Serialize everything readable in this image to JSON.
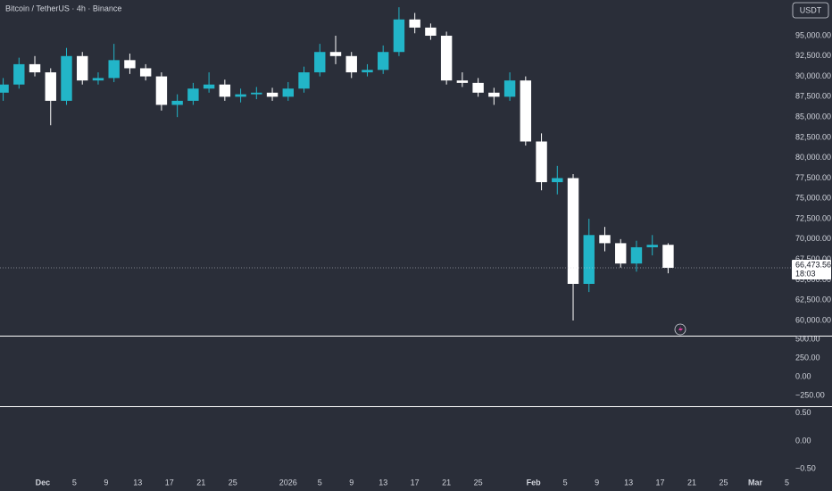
{
  "chart_data": {
    "type": "candlestick",
    "title": "Bitcoin / TetherUS · 4h · Binance",
    "currency": "USDT",
    "up_color": "#22b5c8",
    "down_color": "#ffffff",
    "x": [
      -5,
      -3,
      -1,
      1,
      3,
      5,
      7,
      9,
      11,
      13,
      15,
      17,
      19,
      21,
      23,
      25,
      27,
      29,
      31,
      33,
      35,
      37,
      39,
      41,
      43,
      45,
      47,
      49,
      51,
      53,
      55,
      57,
      59,
      61,
      63,
      65,
      67,
      69,
      71,
      73,
      75,
      77,
      79
    ],
    "open": [
      88000,
      89000,
      91500,
      90500,
      87000,
      92500,
      89500,
      89800,
      92000,
      91000,
      90000,
      86500,
      87000,
      88500,
      89000,
      87500,
      87800,
      88000,
      87500,
      88500,
      90500,
      93000,
      92500,
      90500,
      90800,
      93000,
      97000,
      96000,
      95000,
      89500,
      89200,
      88000,
      87500,
      89500,
      82000,
      77000,
      77500,
      64500,
      70500,
      69500,
      67000,
      69000,
      69300
    ],
    "high": [
      89800,
      92300,
      92500,
      91000,
      93500,
      93000,
      90500,
      94000,
      92800,
      91500,
      90500,
      87800,
      89200,
      90500,
      89600,
      88500,
      88700,
      88600,
      89300,
      91200,
      94000,
      95000,
      93000,
      91500,
      93800,
      98500,
      97800,
      96500,
      95500,
      90500,
      89800,
      88600,
      90500,
      90000,
      83000,
      79000,
      78000,
      72500,
      71500,
      70000,
      69800,
      70500,
      69500
    ],
    "low": [
      87000,
      88500,
      90000,
      84000,
      86500,
      89000,
      89000,
      89300,
      90300,
      89500,
      85800,
      85000,
      86500,
      88000,
      87000,
      86800,
      87200,
      87000,
      87000,
      88000,
      90000,
      91500,
      89800,
      90000,
      90300,
      92500,
      95300,
      94500,
      89000,
      88700,
      87500,
      86500,
      87000,
      81500,
      76000,
      75500,
      60000,
      63500,
      68500,
      66500,
      66000,
      68000,
      65800
    ],
    "close": [
      89000,
      91500,
      90500,
      87000,
      92500,
      89500,
      89800,
      92000,
      91000,
      90000,
      86500,
      87000,
      88500,
      89000,
      87500,
      87800,
      88000,
      87500,
      88500,
      90500,
      93000,
      92500,
      90500,
      90800,
      93000,
      97000,
      96000,
      95000,
      89500,
      89200,
      88000,
      87500,
      89500,
      82000,
      77000,
      77500,
      64500,
      70500,
      69500,
      67000,
      69000,
      69300,
      66473.56
    ],
    "xlim": [
      -5.4,
      99.7
    ],
    "xticks": [
      {
        "value": 0,
        "label": "Dec"
      },
      {
        "value": 4,
        "label": "5"
      },
      {
        "value": 8,
        "label": "9"
      },
      {
        "value": 12,
        "label": "13"
      },
      {
        "value": 16,
        "label": "17"
      },
      {
        "value": 20,
        "label": "21"
      },
      {
        "value": 24,
        "label": "25"
      },
      {
        "value": 31,
        "label": "2026"
      },
      {
        "value": 35,
        "label": "5"
      },
      {
        "value": 39,
        "label": "9"
      },
      {
        "value": 43,
        "label": "13"
      },
      {
        "value": 47,
        "label": "17"
      },
      {
        "value": 51,
        "label": "21"
      },
      {
        "value": 55,
        "label": "25"
      },
      {
        "value": 62,
        "label": "Feb"
      },
      {
        "value": 66,
        "label": "5"
      },
      {
        "value": 70,
        "label": "9"
      },
      {
        "value": 74,
        "label": "13"
      },
      {
        "value": 78,
        "label": "17"
      },
      {
        "value": 82,
        "label": "21"
      },
      {
        "value": 86,
        "label": "25"
      },
      {
        "value": 90,
        "label": "Mar"
      },
      {
        "value": 94,
        "label": "5"
      }
    ],
    "ylim": [
      58135,
      99390
    ],
    "yticks": [
      {
        "value": 60000,
        "label": "60,000.00"
      },
      {
        "value": 62500,
        "label": "62,500.00"
      },
      {
        "value": 65000,
        "label": "65,000.00"
      },
      {
        "value": 67500,
        "label": "67,500.00"
      },
      {
        "value": 70000,
        "label": "70,000.00"
      },
      {
        "value": 72500,
        "label": "72,500.00"
      },
      {
        "value": 75000,
        "label": "75,000.00"
      },
      {
        "value": 77500,
        "label": "77,500.00"
      },
      {
        "value": 80000,
        "label": "80,000.00"
      },
      {
        "value": 82500,
        "label": "82,500.00"
      },
      {
        "value": 85000,
        "label": "85,000.00"
      },
      {
        "value": 87500,
        "label": "87,500.00"
      },
      {
        "value": 90000,
        "label": "90,000.00"
      },
      {
        "value": 92500,
        "label": "92,500.00"
      },
      {
        "value": 95000,
        "label": "95,000.00"
      }
    ],
    "last_price": {
      "value": 66473.56,
      "label": "66,473.56"
    },
    "countdown": "18:03",
    "panes": [
      {
        "ylim": [
          -393,
          536
        ],
        "yticks": [
          {
            "value": 500,
            "label": "500.00"
          },
          {
            "value": 250,
            "label": "250.00"
          },
          {
            "value": 0,
            "label": "0.00"
          },
          {
            "value": -250,
            "label": "−250.00"
          }
        ]
      },
      {
        "ylim": [
          -0.58,
          0.61
        ],
        "yticks": [
          {
            "value": 0.5,
            "label": "0.50"
          },
          {
            "value": 0,
            "label": "0.00"
          },
          {
            "value": -0.5,
            "label": "−0.50"
          }
        ]
      }
    ]
  }
}
